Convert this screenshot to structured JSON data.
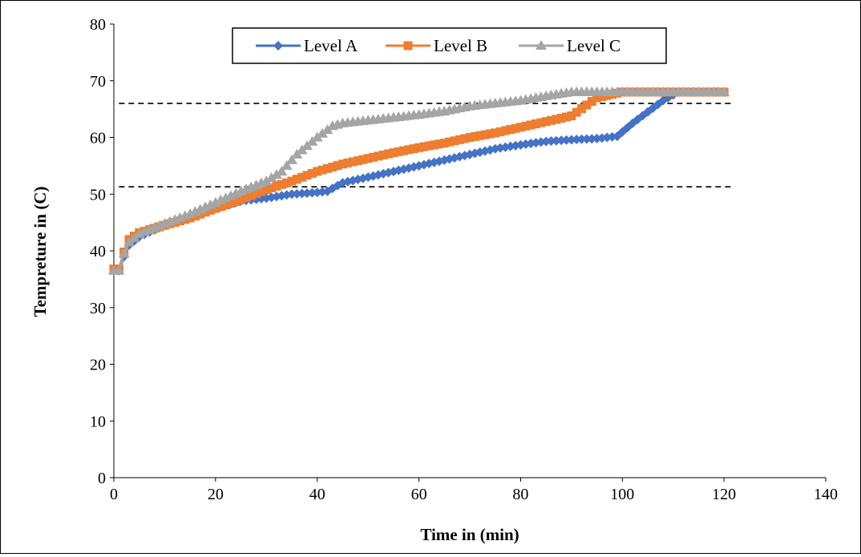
{
  "chart_data": {
    "type": "line",
    "title": "",
    "xlabel": "Time in (min)",
    "ylabel": "Tempreture in (C)",
    "xlim": [
      0,
      140
    ],
    "ylim": [
      0,
      80
    ],
    "xticks": [
      0,
      20,
      40,
      60,
      80,
      100,
      120,
      140
    ],
    "yticks": [
      0,
      10,
      20,
      30,
      40,
      50,
      60,
      70,
      80
    ],
    "grid": false,
    "legend_position": "top-center",
    "reference_lines": [
      {
        "y": 66,
        "style": "dashed",
        "color": "#000000",
        "x_range": [
          1,
          122
        ]
      },
      {
        "y": 51.3,
        "style": "dashed",
        "color": "#000000",
        "x_range": [
          1,
          122
        ]
      }
    ],
    "series": [
      {
        "name": "Level A",
        "color": "#4472C4",
        "marker": "diamond",
        "points": [
          [
            0,
            36.5
          ],
          [
            1,
            36.5
          ],
          [
            2,
            39
          ],
          [
            3,
            41
          ],
          [
            5,
            42.5
          ],
          [
            10,
            44.5
          ],
          [
            15,
            46
          ],
          [
            20,
            47.5
          ],
          [
            25,
            48.8
          ],
          [
            30,
            49.3
          ],
          [
            35,
            50
          ],
          [
            40,
            50.3
          ],
          [
            42,
            50.5
          ],
          [
            45,
            52
          ],
          [
            50,
            53
          ],
          [
            55,
            54
          ],
          [
            60,
            55
          ],
          [
            65,
            56
          ],
          [
            70,
            57
          ],
          [
            75,
            58
          ],
          [
            80,
            58.7
          ],
          [
            85,
            59.3
          ],
          [
            90,
            59.6
          ],
          [
            95,
            59.8
          ],
          [
            99,
            60.2
          ],
          [
            102,
            62.5
          ],
          [
            105,
            64.5
          ],
          [
            108,
            66.5
          ],
          [
            111,
            68
          ],
          [
            120,
            68
          ]
        ]
      },
      {
        "name": "Level B",
        "color": "#ED7D31",
        "marker": "square",
        "points": [
          [
            0,
            36.8
          ],
          [
            1,
            36.8
          ],
          [
            2,
            39.8
          ],
          [
            3,
            42
          ],
          [
            5,
            43.2
          ],
          [
            10,
            44.5
          ],
          [
            15,
            45.8
          ],
          [
            20,
            47.5
          ],
          [
            25,
            49
          ],
          [
            30,
            50.8
          ],
          [
            35,
            52.3
          ],
          [
            40,
            54
          ],
          [
            45,
            55.3
          ],
          [
            50,
            56.3
          ],
          [
            55,
            57.3
          ],
          [
            60,
            58.2
          ],
          [
            65,
            59
          ],
          [
            70,
            60
          ],
          [
            75,
            60.8
          ],
          [
            80,
            61.8
          ],
          [
            85,
            62.8
          ],
          [
            90,
            63.8
          ],
          [
            95,
            67
          ],
          [
            100,
            68
          ],
          [
            110,
            68
          ],
          [
            120,
            68
          ]
        ]
      },
      {
        "name": "Level C",
        "color": "#A5A5A5",
        "marker": "triangle",
        "points": [
          [
            0,
            36.5
          ],
          [
            1,
            36.5
          ],
          [
            2,
            39.5
          ],
          [
            3,
            41.5
          ],
          [
            5,
            43
          ],
          [
            10,
            44.8
          ],
          [
            15,
            46.5
          ],
          [
            20,
            48.5
          ],
          [
            25,
            50.5
          ],
          [
            30,
            52.3
          ],
          [
            33,
            54
          ],
          [
            36,
            57
          ],
          [
            40,
            60
          ],
          [
            43,
            62
          ],
          [
            45,
            62.5
          ],
          [
            50,
            63
          ],
          [
            55,
            63.5
          ],
          [
            60,
            64
          ],
          [
            65,
            64.6
          ],
          [
            70,
            65.5
          ],
          [
            75,
            66
          ],
          [
            80,
            66.5
          ],
          [
            85,
            67.3
          ],
          [
            90,
            68
          ],
          [
            100,
            68
          ],
          [
            110,
            68
          ],
          [
            120,
            68
          ]
        ]
      }
    ]
  }
}
